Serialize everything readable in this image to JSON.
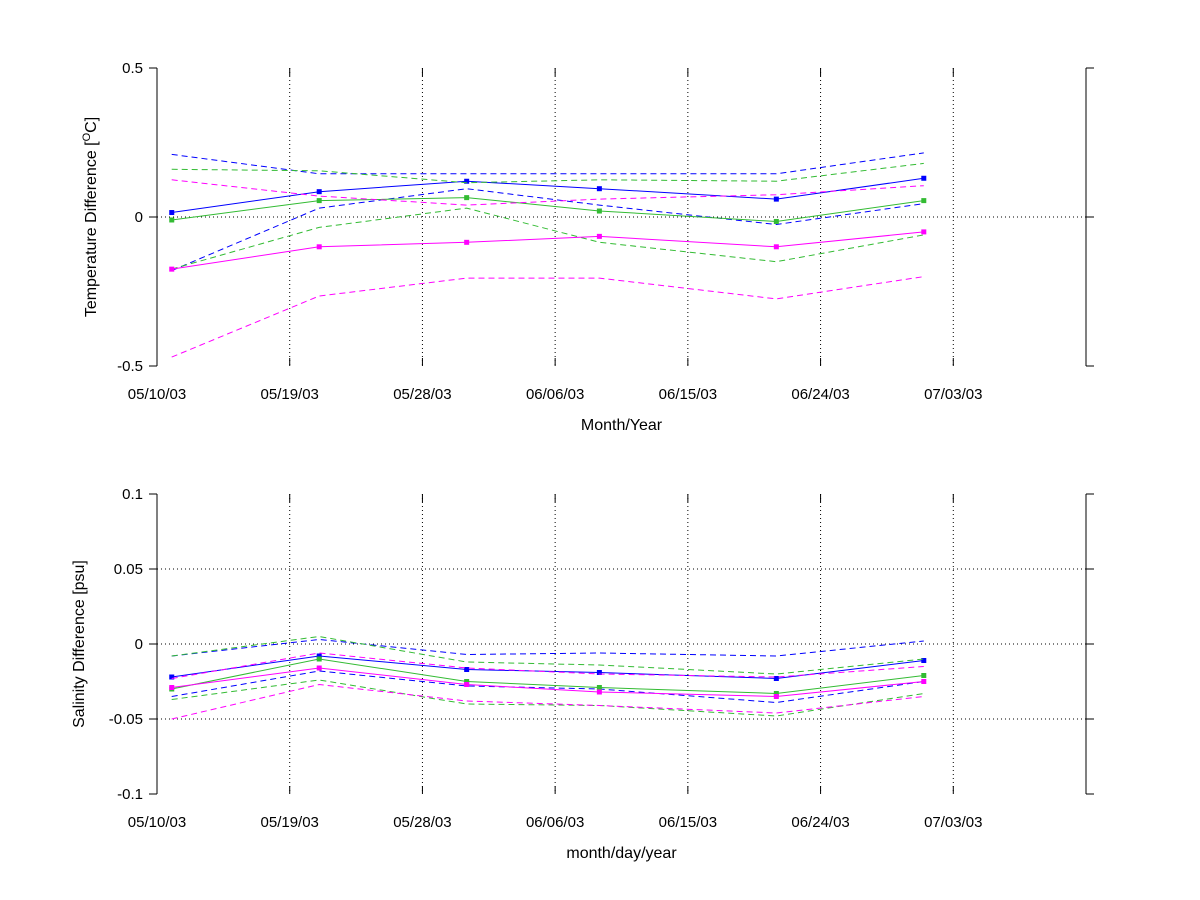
{
  "chart_data": [
    {
      "type": "line",
      "panel": "top",
      "ylabel_prefix": "Temperature Difference [",
      "ylabel_super": "O",
      "ylabel_suffix": "C]",
      "xlabel": "Month/Year",
      "ylim": [
        -0.5,
        0.5
      ],
      "yticks": [
        -0.5,
        0,
        0.5
      ],
      "yticklabels": [
        "-0.5",
        "0",
        "0.5"
      ],
      "xlim": [
        "2003-05-10",
        "2003-07-12"
      ],
      "xticks": [
        "2003-05-10",
        "2003-05-19",
        "2003-05-28",
        "2003-06-06",
        "2003-06-15",
        "2003-06-24",
        "2003-07-03"
      ],
      "xticklabels": [
        "05/10/03",
        "05/19/03",
        "05/28/03",
        "06/06/03",
        "06/15/03",
        "06/24/03",
        "07/03/03"
      ],
      "grid": true,
      "x": [
        "2003-05-11",
        "2003-05-21",
        "2003-05-31",
        "2003-06-09",
        "2003-06-21",
        "2003-07-01"
      ],
      "series": [
        {
          "color": "#0000ff",
          "style": "solid",
          "markers": true,
          "values": [
            0.015,
            0.085,
            0.12,
            0.095,
            0.06,
            0.13
          ]
        },
        {
          "color": "#0000ff",
          "style": "dashed",
          "markers": false,
          "values": [
            0.21,
            0.145,
            0.145,
            0.145,
            0.145,
            0.215
          ]
        },
        {
          "color": "#0000ff",
          "style": "dashed",
          "markers": false,
          "values": [
            -0.18,
            0.03,
            0.095,
            0.04,
            -0.025,
            0.045
          ]
        },
        {
          "color": "#33bb33",
          "style": "solid",
          "markers": true,
          "values": [
            -0.01,
            0.055,
            0.065,
            0.02,
            -0.015,
            0.055
          ]
        },
        {
          "color": "#33bb33",
          "style": "dashed",
          "markers": false,
          "values": [
            0.16,
            0.155,
            0.115,
            0.125,
            0.12,
            0.18
          ]
        },
        {
          "color": "#33bb33",
          "style": "dashed",
          "markers": false,
          "values": [
            -0.175,
            -0.035,
            0.03,
            -0.085,
            -0.15,
            -0.06
          ]
        },
        {
          "color": "#ff00ff",
          "style": "solid",
          "markers": true,
          "values": [
            -0.175,
            -0.1,
            -0.085,
            -0.065,
            -0.1,
            -0.05
          ]
        },
        {
          "color": "#ff00ff",
          "style": "dashed",
          "markers": false,
          "values": [
            0.125,
            0.07,
            0.04,
            0.06,
            0.075,
            0.105
          ]
        },
        {
          "color": "#ff00ff",
          "style": "dashed",
          "markers": false,
          "values": [
            -0.47,
            -0.265,
            -0.205,
            -0.205,
            -0.275,
            -0.2
          ]
        }
      ]
    },
    {
      "type": "line",
      "panel": "bottom",
      "ylabel": "Salinity Difference [psu]",
      "xlabel": "month/day/year",
      "ylim": [
        -0.1,
        0.1
      ],
      "yticks": [
        -0.1,
        -0.05,
        0,
        0.05,
        0.1
      ],
      "yticklabels": [
        "-0.1",
        "-0.05",
        "0",
        "0.05",
        "0.1"
      ],
      "xlim": [
        "2003-05-10",
        "2003-07-12"
      ],
      "xticks": [
        "2003-05-10",
        "2003-05-19",
        "2003-05-28",
        "2003-06-06",
        "2003-06-15",
        "2003-06-24",
        "2003-07-03"
      ],
      "xticklabels": [
        "05/10/03",
        "05/19/03",
        "05/28/03",
        "06/06/03",
        "06/15/03",
        "06/24/03",
        "07/03/03"
      ],
      "grid": true,
      "x": [
        "2003-05-11",
        "2003-05-21",
        "2003-05-31",
        "2003-06-09",
        "2003-06-21",
        "2003-07-01"
      ],
      "series": [
        {
          "color": "#0000ff",
          "style": "solid",
          "markers": true,
          "values": [
            -0.022,
            -0.008,
            -0.017,
            -0.019,
            -0.023,
            -0.011
          ]
        },
        {
          "color": "#0000ff",
          "style": "dashed",
          "markers": false,
          "values": [
            -0.008,
            0.003,
            -0.007,
            -0.006,
            -0.008,
            0.002
          ]
        },
        {
          "color": "#0000ff",
          "style": "dashed",
          "markers": false,
          "values": [
            -0.035,
            -0.018,
            -0.028,
            -0.03,
            -0.039,
            -0.025
          ]
        },
        {
          "color": "#33bb33",
          "style": "solid",
          "markers": true,
          "values": [
            -0.03,
            -0.01,
            -0.025,
            -0.029,
            -0.033,
            -0.021
          ]
        },
        {
          "color": "#33bb33",
          "style": "dashed",
          "markers": false,
          "values": [
            -0.008,
            0.005,
            -0.012,
            -0.014,
            -0.02,
            -0.01
          ]
        },
        {
          "color": "#33bb33",
          "style": "dashed",
          "markers": false,
          "values": [
            -0.037,
            -0.024,
            -0.04,
            -0.041,
            -0.048,
            -0.033
          ]
        },
        {
          "color": "#ff00ff",
          "style": "solid",
          "markers": true,
          "values": [
            -0.029,
            -0.016,
            -0.027,
            -0.032,
            -0.035,
            -0.025
          ]
        },
        {
          "color": "#ff00ff",
          "style": "dashed",
          "markers": false,
          "values": [
            -0.023,
            -0.006,
            -0.016,
            -0.02,
            -0.022,
            -0.015
          ]
        },
        {
          "color": "#ff00ff",
          "style": "dashed",
          "markers": false,
          "values": [
            -0.05,
            -0.027,
            -0.038,
            -0.041,
            -0.046,
            -0.035
          ]
        }
      ]
    }
  ]
}
